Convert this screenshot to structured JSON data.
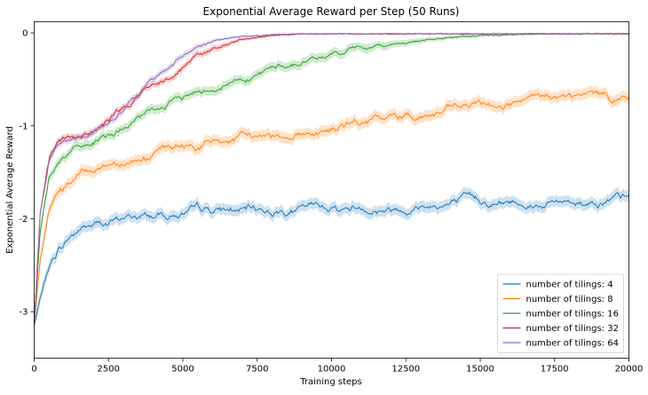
{
  "chart_data": {
    "type": "line",
    "title": "Exponential Average Reward per Step (50 Runs)",
    "xlabel": "Training steps",
    "ylabel": "Exponential Average Reward",
    "xlim": [
      0,
      20000
    ],
    "ylim": [
      -3.5,
      0.12
    ],
    "xticks": [
      0,
      2500,
      5000,
      7500,
      10000,
      12500,
      15000,
      17500,
      20000
    ],
    "yticks": [
      -3,
      -2,
      -1,
      0
    ],
    "grid": false,
    "legend_position": "bottom-right",
    "band": "shaded spread around each line",
    "series": [
      {
        "name": "number of tilings: 4",
        "color": "#1f77b4",
        "x": [
          0,
          200,
          500,
          800,
          1200,
          1600,
          2000,
          2500,
          3000,
          4000,
          5000,
          6000,
          7000,
          8000,
          9000,
          10000,
          11000,
          12000,
          13000,
          14000,
          15000,
          16000,
          17000,
          18000,
          19000,
          20000
        ],
        "y": [
          -3.15,
          -2.85,
          -2.55,
          -2.35,
          -2.2,
          -2.1,
          -2.07,
          -2.05,
          -2.0,
          -1.97,
          -1.94,
          -1.93,
          -1.92,
          -1.91,
          -1.9,
          -1.88,
          -1.87,
          -1.87,
          -1.85,
          -1.83,
          -1.82,
          -1.82,
          -1.81,
          -1.8,
          -1.79,
          -1.79
        ]
      },
      {
        "name": "number of tilings: 8",
        "color": "#ff7f0e",
        "x": [
          0,
          200,
          500,
          800,
          1200,
          1600,
          2000,
          2500,
          3000,
          4000,
          5000,
          6000,
          7000,
          8000,
          9000,
          10000,
          11000,
          12000,
          13000,
          14000,
          15000,
          16000,
          17000,
          18000,
          19000,
          20000
        ],
        "y": [
          -3.15,
          -2.45,
          -1.95,
          -1.72,
          -1.6,
          -1.52,
          -1.45,
          -1.4,
          -1.35,
          -1.3,
          -1.24,
          -1.19,
          -1.15,
          -1.1,
          -1.06,
          -1.03,
          -0.98,
          -0.93,
          -0.88,
          -0.84,
          -0.8,
          -0.77,
          -0.74,
          -0.72,
          -0.7,
          -0.69
        ]
      },
      {
        "name": "number of tilings: 16",
        "color": "#2ca02c",
        "x": [
          0,
          200,
          500,
          800,
          1200,
          1600,
          2000,
          2500,
          3000,
          4000,
          5000,
          6000,
          7000,
          8000,
          9000,
          10000,
          11000,
          12000,
          13000,
          14000,
          15000,
          16000,
          17000,
          18000,
          19000,
          20000
        ],
        "y": [
          -3.15,
          -2.15,
          -1.55,
          -1.35,
          -1.27,
          -1.22,
          -1.18,
          -1.13,
          -1.02,
          -0.85,
          -0.7,
          -0.58,
          -0.47,
          -0.38,
          -0.3,
          -0.23,
          -0.17,
          -0.12,
          -0.08,
          -0.05,
          -0.03,
          -0.02,
          -0.01,
          -0.01,
          -0.01,
          -0.01
        ]
      },
      {
        "name": "number of tilings: 32",
        "color": "#d62728",
        "x": [
          0,
          200,
          500,
          800,
          1200,
          1600,
          2000,
          2500,
          3000,
          3500,
          4000,
          4500,
          5000,
          5500,
          6000,
          6500,
          7000,
          7500,
          8000,
          9000,
          10000,
          12000,
          14000,
          16000,
          18000,
          20000
        ],
        "y": [
          -3.15,
          -1.95,
          -1.35,
          -1.18,
          -1.13,
          -1.12,
          -1.05,
          -0.95,
          -0.82,
          -0.7,
          -0.55,
          -0.44,
          -0.33,
          -0.24,
          -0.17,
          -0.12,
          -0.08,
          -0.05,
          -0.03,
          -0.01,
          -0.01,
          -0.01,
          -0.01,
          -0.01,
          -0.01,
          -0.01
        ]
      },
      {
        "name": "number of tilings: 64",
        "color": "#9467bd",
        "x": [
          0,
          200,
          500,
          800,
          1200,
          1600,
          2000,
          2500,
          3000,
          3500,
          4000,
          4500,
          5000,
          5500,
          6000,
          6500,
          7000,
          7500,
          8000,
          9000,
          10000,
          12000,
          14000,
          16000,
          18000,
          20000
        ],
        "y": [
          -3.15,
          -1.95,
          -1.35,
          -1.18,
          -1.13,
          -1.12,
          -1.06,
          -0.93,
          -0.8,
          -0.67,
          -0.52,
          -0.38,
          -0.25,
          -0.15,
          -0.09,
          -0.06,
          -0.04,
          -0.03,
          -0.02,
          -0.01,
          -0.01,
          -0.01,
          -0.01,
          -0.01,
          -0.01,
          -0.01
        ]
      }
    ]
  }
}
